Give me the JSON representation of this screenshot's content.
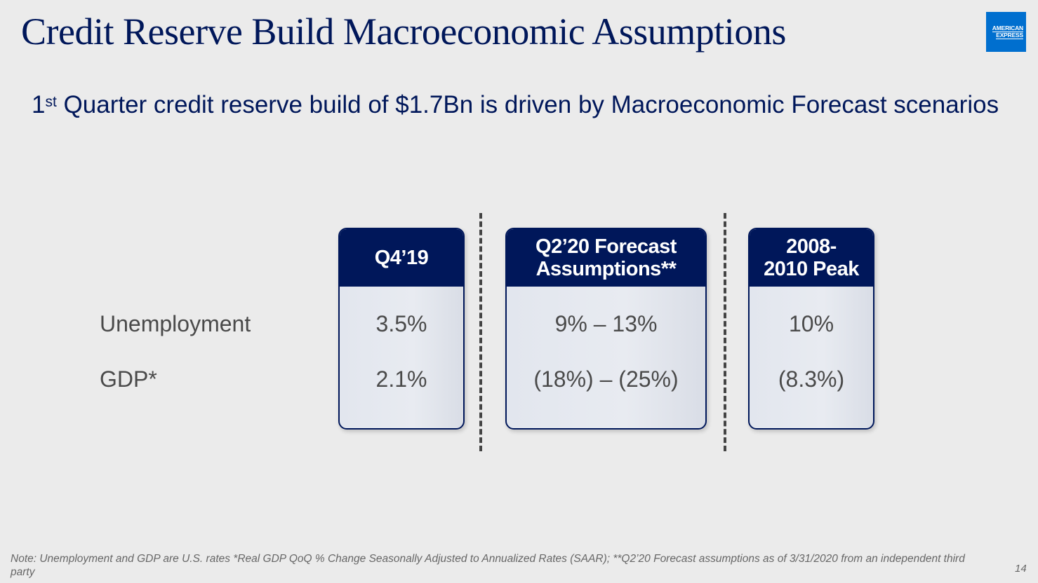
{
  "title": "Credit Reserve Build Macroeconomic Assumptions",
  "logo": {
    "line1": "AMERICAN",
    "line2": "EXPRESS"
  },
  "subtitle": {
    "num": "1",
    "sup": "st",
    "rest": " Quarter credit reserve build of $1.7Bn is driven by Macroeconomic Forecast scenarios"
  },
  "rows": {
    "unemployment": "Unemployment",
    "gdp": "GDP*"
  },
  "columns": [
    {
      "header": "Q4’19",
      "unemployment": "3.5%",
      "gdp": "2.1%"
    },
    {
      "header_line1": "Q2’20 Forecast",
      "header_line2": "Assumptions**",
      "unemployment": "9% – 13%",
      "gdp": "(18%) – (25%)"
    },
    {
      "header_line1": "2008-",
      "header_line2": "2010 Peak",
      "unemployment": "10%",
      "gdp": "(8.3%)"
    }
  ],
  "note": "Note: Unemployment and GDP are U.S. rates *Real GDP QoQ % Change Seasonally Adjusted to Annualized Rates (SAAR); **Q2’20 Forecast assumptions as of 3/31/2020 from an independent third party",
  "page_number": "14",
  "colors": {
    "navy": "#00175a",
    "amex_blue": "#006fcf",
    "background": "#ebebeb"
  }
}
